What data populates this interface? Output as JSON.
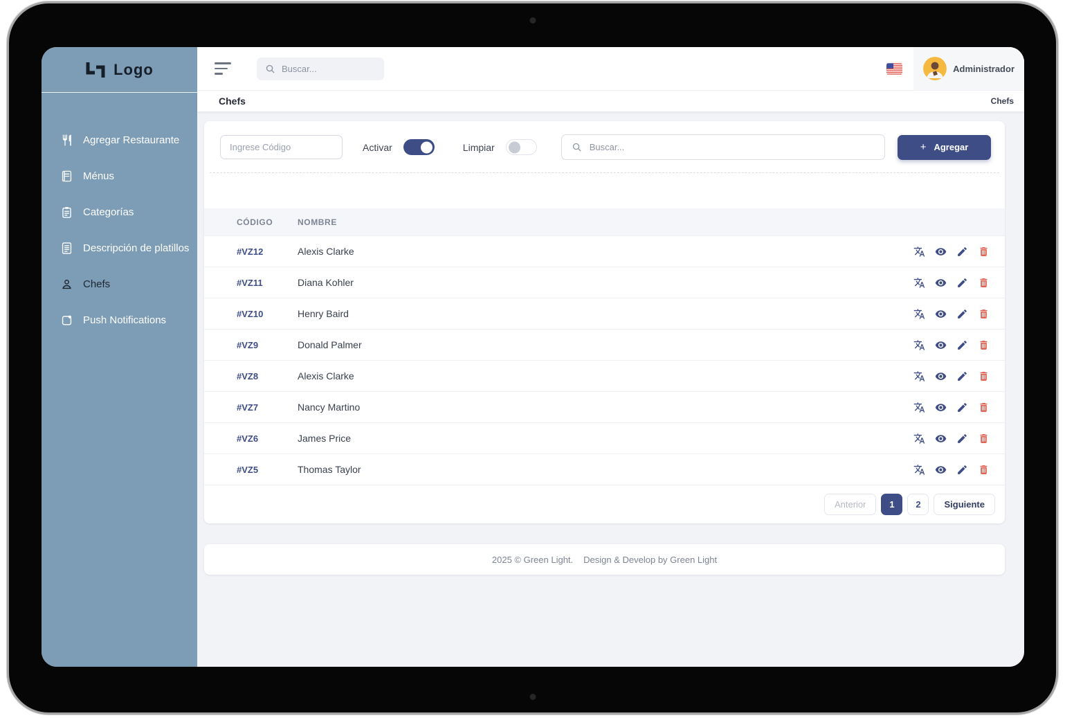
{
  "sidebar": {
    "logo_text": "Logo",
    "items": [
      {
        "label": "Agregar Restaurante",
        "icon": "restaurant-icon",
        "active": false
      },
      {
        "label": "Ménus",
        "icon": "menu-book-icon",
        "active": false
      },
      {
        "label": "Categorías",
        "icon": "clipboard-icon",
        "active": false
      },
      {
        "label": "Descripción de platillos",
        "icon": "document-icon",
        "active": false
      },
      {
        "label": "Chefs",
        "icon": "person-icon",
        "active": true
      },
      {
        "label": "Push Notifications",
        "icon": "notification-icon",
        "active": false
      }
    ]
  },
  "topbar": {
    "search_placeholder": "Buscar...",
    "flag_icon": "us-flag-icon",
    "user_name": "Administrador"
  },
  "breadcrumb": {
    "left": "Chefs",
    "right": "Chefs"
  },
  "filters": {
    "code_placeholder": "Ingrese Código",
    "activar_label": "Activar",
    "activar_on": true,
    "limpiar_label": "Limpiar",
    "limpiar_on": false,
    "search_placeholder": "Buscar...",
    "add_button_label": "Agregar",
    "add_button_plus": "+"
  },
  "table": {
    "columns": [
      "CÓDIGO",
      "NOMBRE"
    ],
    "rows": [
      {
        "code": "#VZ12",
        "name": "Alexis Clarke"
      },
      {
        "code": "#VZ11",
        "name": "Diana Kohler"
      },
      {
        "code": "#VZ10",
        "name": "Henry Baird"
      },
      {
        "code": "#VZ9",
        "name": "Donald Palmer"
      },
      {
        "code": "#VZ8",
        "name": "Alexis Clarke"
      },
      {
        "code": "#VZ7",
        "name": "Nancy Martino"
      },
      {
        "code": "#VZ6",
        "name": "James Price"
      },
      {
        "code": "#VZ5",
        "name": "Thomas Taylor"
      }
    ],
    "actions": [
      "translate-icon",
      "view-icon",
      "edit-icon",
      "delete-icon"
    ]
  },
  "pagination": {
    "previous": "Anterior",
    "pages": [
      "1",
      "2"
    ],
    "active_page": "1",
    "next": "Siguiente"
  },
  "footer": {
    "copyright": "2025 © Green Light.",
    "credit": "Design & Develop by Green Light"
  },
  "colors": {
    "accent": "#3f4d87",
    "sidebar": "#7d9cb5",
    "danger": "#e2594a",
    "page_bg": "#f1f3f7",
    "avatar_bg": "#f5b940"
  }
}
